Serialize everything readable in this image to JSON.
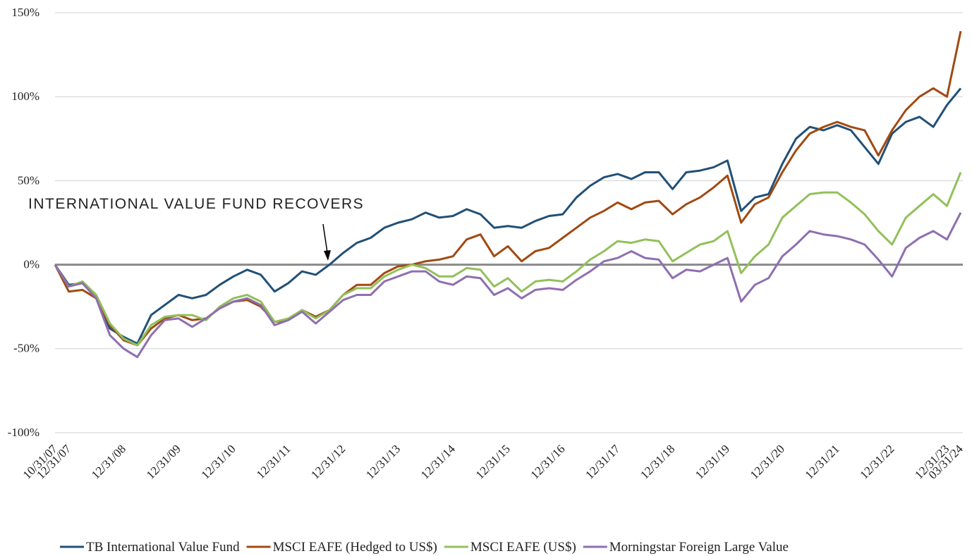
{
  "chart_data": {
    "type": "line",
    "annotation": "INTERNATIONAL VALUE FUND RECOVERS",
    "categories": [
      "10/31/07",
      "12/31/07",
      null,
      null,
      null,
      "12/31/08",
      null,
      null,
      null,
      "12/31/09",
      null,
      null,
      null,
      "12/31/10",
      null,
      null,
      null,
      "12/31/11",
      null,
      null,
      null,
      "12/31/12",
      null,
      null,
      null,
      "12/31/13",
      null,
      null,
      null,
      "12/31/14",
      null,
      null,
      null,
      "12/31/15",
      null,
      null,
      null,
      "12/31/16",
      null,
      null,
      null,
      "12/31/17",
      null,
      null,
      null,
      "12/31/18",
      null,
      null,
      null,
      "12/31/19",
      null,
      null,
      null,
      "12/31/20",
      null,
      null,
      null,
      "12/31/21",
      null,
      null,
      null,
      "12/31/22",
      null,
      null,
      null,
      "12/31/23",
      "03/31/24"
    ],
    "series": [
      {
        "name": "TB International Value Fund",
        "color": "#215077",
        "values": [
          0,
          -12,
          -11,
          -20,
          -38,
          -43,
          -47,
          -30,
          -24,
          -18,
          -20,
          -18,
          -12,
          -7,
          -3,
          -6,
          -16,
          -11,
          -4,
          -6,
          0,
          7,
          13,
          16,
          22,
          25,
          27,
          31,
          28,
          29,
          33,
          30,
          22,
          23,
          22,
          26,
          29,
          30,
          40,
          47,
          52,
          54,
          51,
          55,
          55,
          45,
          55,
          56,
          58,
          62,
          32,
          40,
          42,
          60,
          75,
          82,
          80,
          83,
          80,
          70,
          60,
          78,
          85,
          88,
          82,
          95,
          105
        ]
      },
      {
        "name": "MSCI EAFE (Hedged to US$)",
        "color": "#a04a12",
        "values": [
          0,
          -16,
          -15,
          -20,
          -36,
          -45,
          -48,
          -38,
          -32,
          -30,
          -33,
          -32,
          -26,
          -22,
          -21,
          -25,
          -34,
          -33,
          -27,
          -31,
          -27,
          -18,
          -12,
          -12,
          -5,
          -1,
          0,
          2,
          3,
          5,
          15,
          18,
          5,
          11,
          2,
          8,
          10,
          16,
          22,
          28,
          32,
          37,
          33,
          37,
          38,
          30,
          36,
          40,
          46,
          53,
          25,
          36,
          40,
          55,
          68,
          78,
          82,
          85,
          82,
          80,
          65,
          80,
          92,
          100,
          105,
          100,
          139
        ]
      },
      {
        "name": "MSCI EAFE (US$)",
        "color": "#92c05a",
        "values": [
          0,
          -13,
          -10,
          -18,
          -35,
          -44,
          -48,
          -36,
          -31,
          -30,
          -30,
          -33,
          -25,
          -20,
          -18,
          -22,
          -34,
          -32,
          -27,
          -32,
          -27,
          -18,
          -14,
          -14,
          -7,
          -3,
          0,
          -2,
          -7,
          -7,
          -2,
          -3,
          -13,
          -8,
          -16,
          -10,
          -9,
          -10,
          -4,
          3,
          8,
          14,
          13,
          15,
          14,
          2,
          7,
          12,
          14,
          20,
          -5,
          5,
          12,
          28,
          35,
          42,
          43,
          43,
          37,
          30,
          20,
          12,
          28,
          35,
          42,
          35,
          55
        ]
      },
      {
        "name": "Morningstar Foreign Large Value",
        "color": "#8e6fb0",
        "values": [
          0,
          -13,
          -11,
          -20,
          -42,
          -50,
          -55,
          -42,
          -33,
          -32,
          -37,
          -32,
          -26,
          -22,
          -20,
          -24,
          -36,
          -33,
          -28,
          -35,
          -28,
          -21,
          -18,
          -18,
          -10,
          -7,
          -4,
          -4,
          -10,
          -12,
          -7,
          -8,
          -18,
          -14,
          -20,
          -15,
          -14,
          -15,
          -9,
          -4,
          2,
          4,
          8,
          4,
          3,
          -8,
          -3,
          -4,
          0,
          4,
          -22,
          -12,
          -8,
          5,
          12,
          20,
          18,
          17,
          15,
          12,
          3,
          -7,
          10,
          16,
          20,
          15,
          31
        ]
      }
    ],
    "ylim": [
      -100,
      150
    ],
    "yticks": [
      {
        "value": -100,
        "label": "-100%"
      },
      {
        "value": -50,
        "label": "-50%"
      },
      {
        "value": 0,
        "label": "0%"
      },
      {
        "value": 50,
        "label": "50%"
      },
      {
        "value": 100,
        "label": "100%"
      },
      {
        "value": 150,
        "label": "150%"
      }
    ],
    "grid": true
  }
}
